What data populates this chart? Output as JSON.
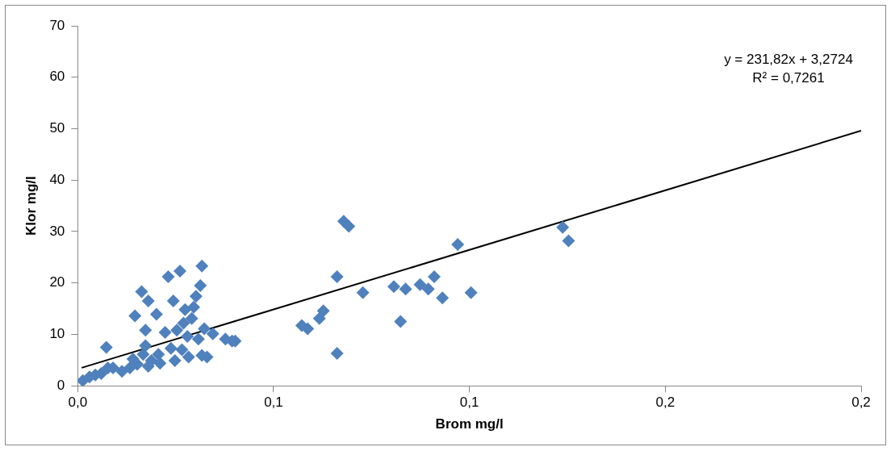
{
  "chart_data": {
    "type": "scatter",
    "xlabel": "Brom mg/l",
    "ylabel": "Klor mg/l",
    "xlim": [
      0,
      0.2
    ],
    "xticks": [
      {
        "value": 0,
        "label": "0,0"
      },
      {
        "value": 0.05,
        "label": "0,1"
      },
      {
        "value": 0.1,
        "label": "0,1"
      },
      {
        "value": 0.15,
        "label": "0,2"
      },
      {
        "value": 0.2,
        "label": "0,2"
      }
    ],
    "ylim": [
      0,
      70
    ],
    "yticks": [
      0,
      10,
      20,
      30,
      40,
      50,
      60,
      70
    ],
    "grid": false,
    "legend": false,
    "marker": "diamond",
    "annotations": [
      "y = 231,82x + 3,2724",
      "R² = 0,7261"
    ],
    "series": [
      {
        "color": "#4f81bd",
        "x": [
          0.0013,
          0.003,
          0.0045,
          0.006,
          0.0073,
          0.0077,
          0.009,
          0.0113,
          0.0133,
          0.0141,
          0.0146,
          0.0152,
          0.0163,
          0.0167,
          0.0173,
          0.018,
          0.0173,
          0.018,
          0.0188,
          0.0201,
          0.0206,
          0.021,
          0.0223,
          0.0231,
          0.0238,
          0.0244,
          0.0248,
          0.0253,
          0.0261,
          0.0266,
          0.027,
          0.0274,
          0.028,
          0.0283,
          0.0291,
          0.0296,
          0.0302,
          0.0308,
          0.0313,
          0.0317,
          0.0317,
          0.0323,
          0.033,
          0.0345,
          0.0377,
          0.0394,
          0.0402,
          0.0572,
          0.0587,
          0.0617,
          0.0627,
          0.0662,
          0.0662,
          0.0679,
          0.0692,
          0.0728,
          0.0807,
          0.0824,
          0.0837,
          0.0874,
          0.0895,
          0.091,
          0.0931,
          0.097,
          0.1004,
          0.1238,
          0.1253
        ],
        "values": [
          1.0,
          1.7,
          2.1,
          2.4,
          7.5,
          3.5,
          3.5,
          2.8,
          3.5,
          5.2,
          13.6,
          4.2,
          18.3,
          6.1,
          10.8,
          16.5,
          7.8,
          3.8,
          4.9,
          13.9,
          6.1,
          4.4,
          10.4,
          21.2,
          7.3,
          16.5,
          4.9,
          10.8,
          22.3,
          7.0,
          12.2,
          14.8,
          9.6,
          5.6,
          13.1,
          15.3,
          17.4,
          9.1,
          19.5,
          23.3,
          5.9,
          11.1,
          5.6,
          10.1,
          9.1,
          8.7,
          8.7,
          11.7,
          11.1,
          13.1,
          14.6,
          21.2,
          6.3,
          32.0,
          31.0,
          18.1,
          19.3,
          12.5,
          18.8,
          19.7,
          18.8,
          21.2,
          17.1,
          27.5,
          18.1,
          30.8,
          28.2
        ]
      },
      {
        "type": "line",
        "color": "#000000",
        "marker": "none",
        "x": [
          0.001,
          0.2
        ],
        "values": [
          3.5,
          49.6
        ]
      }
    ]
  }
}
